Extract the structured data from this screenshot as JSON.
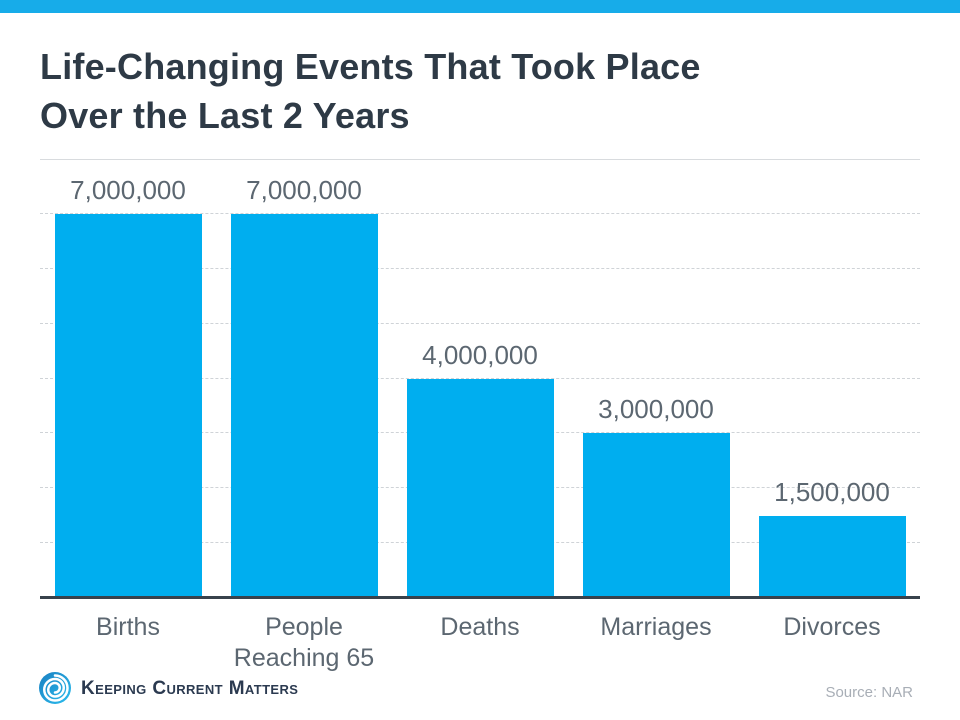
{
  "page": {
    "accent_bar_color": "#17ACE9",
    "background_color": "#ffffff"
  },
  "header": {
    "title_line1": "Life-Changing Events That Took Place",
    "title_line2": "Over the Last 2 Years",
    "title_color": "#2e3a46"
  },
  "chart_data": {
    "type": "bar",
    "title": "Life-Changing Events That Took Place Over the Last 2 Years",
    "categories": [
      "Births",
      "People Reaching 65",
      "Deaths",
      "Marriages",
      "Divorces"
    ],
    "category_label_lines": [
      [
        "Births"
      ],
      [
        "People",
        "Reaching 65"
      ],
      [
        "Deaths"
      ],
      [
        "Marriages"
      ],
      [
        "Divorces"
      ]
    ],
    "values": [
      7000000,
      7000000,
      4000000,
      3000000,
      1500000
    ],
    "data_labels": [
      "7,000,000",
      "7,000,000",
      "4,000,000",
      "3,000,000",
      "1,500,000"
    ],
    "xlabel": "",
    "ylabel": "",
    "ylim": [
      0,
      8000000
    ],
    "gridline_interval": 1000000,
    "grid": true,
    "gridline_style": "dashed",
    "legend_position": "none",
    "bar_color": "#00AEEF",
    "axis_line_color": "#38424c",
    "value_label_color": "#5c6771",
    "category_label_color": "#5c6771"
  },
  "footer": {
    "logo_icon": "kcm-swirl-icon",
    "logo_text": "Keeping Current Matters",
    "logo_text_color": "#2b3a50",
    "source_label": "Source: NAR",
    "source_color": "#a8aeb6"
  }
}
